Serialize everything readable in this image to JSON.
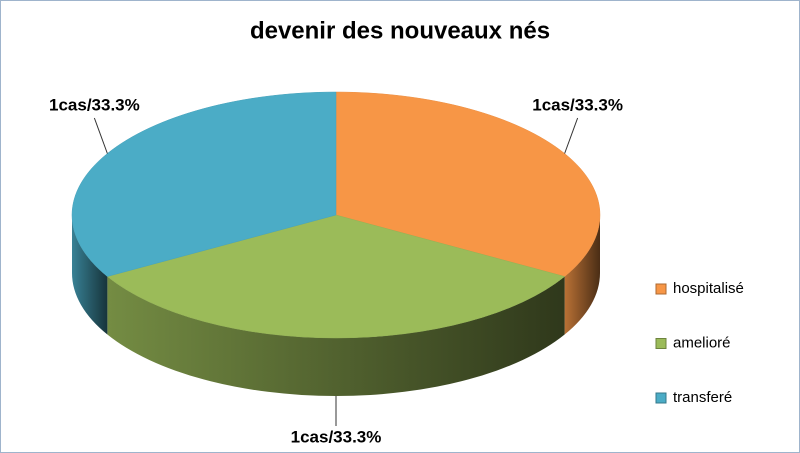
{
  "chart_data": {
    "type": "pie",
    "title": "devenir des nouveaux nés",
    "categories": [
      "hospitalisé",
      "amelioré",
      "transferé"
    ],
    "values": [
      33.3,
      33.3,
      33.3
    ],
    "value_labels": [
      "1cas/33.3%",
      "1cas/33.3%",
      "1cas/33.3%"
    ],
    "colors": [
      "#f79646",
      "#9bbb59",
      "#4bacc6"
    ],
    "legend": "right"
  }
}
